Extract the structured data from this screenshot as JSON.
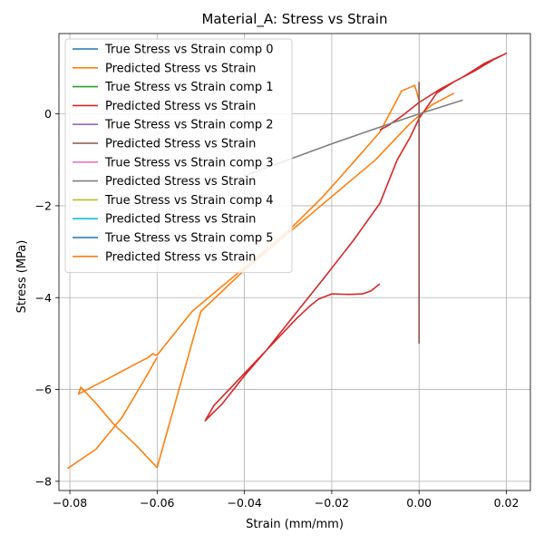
{
  "chart_data": {
    "type": "line",
    "title": "Material_A: Stress vs Strain",
    "xlabel": "Strain (mm/mm)",
    "ylabel": "Stress (MPa)",
    "xlim": [
      -0.0825,
      0.0255
    ],
    "ylim": [
      -8.2,
      1.75
    ],
    "grid": true,
    "legend_position": "top-left",
    "x_ticks": [
      -0.08,
      -0.06,
      -0.04,
      -0.02,
      0.0,
      0.02
    ],
    "x_tick_labels": [
      "−0.08",
      "−0.06",
      "−0.04",
      "−0.02",
      "0.00",
      "0.02"
    ],
    "y_ticks": [
      -8,
      -6,
      -4,
      -2,
      0
    ],
    "y_tick_labels": [
      "−8",
      "−6",
      "−4",
      "−2",
      "0"
    ],
    "series": [
      {
        "name": "True Stress vs Strain comp 0",
        "color": "#1f77b4",
        "x": [],
        "y": []
      },
      {
        "name": "Predicted Stress vs Strain",
        "color": "#ff7f0e",
        "x": [
          0.0,
          -0.001,
          -0.004,
          -0.009,
          -0.015,
          -0.022,
          -0.03,
          -0.04,
          -0.047,
          -0.052,
          -0.06,
          -0.0605,
          -0.061,
          -0.062,
          -0.066,
          -0.07,
          -0.078,
          -0.0775,
          -0.074,
          -0.07,
          -0.065,
          -0.06,
          -0.05,
          -0.04,
          -0.03,
          -0.02,
          -0.01,
          -0.002,
          0.003,
          0.008
        ],
        "y": [
          0.3,
          0.62,
          0.5,
          -0.4,
          -1.05,
          -1.8,
          -2.55,
          -3.35,
          -3.9,
          -4.3,
          -5.25,
          -5.25,
          -5.22,
          -5.3,
          -5.5,
          -5.7,
          -6.1,
          -5.95,
          -6.3,
          -6.75,
          -7.2,
          -7.7,
          -4.3,
          -3.4,
          -2.6,
          -1.8,
          -1.0,
          -0.2,
          0.2,
          0.45
        ],
        "note_closure": [
          -0.06,
          -0.0805
        ],
        "extra_x": [
          -0.06,
          -0.063,
          -0.068,
          -0.074,
          -0.0805
        ],
        "extra_y": [
          -5.3,
          -5.8,
          -6.6,
          -7.3,
          -7.72
        ]
      },
      {
        "name": "True Stress vs Strain comp 1",
        "color": "#2ca02c",
        "x": [],
        "y": []
      },
      {
        "name": "Predicted Stress vs Strain",
        "color": "#d62728",
        "x": [
          -0.009,
          -0.011,
          -0.013,
          -0.016,
          -0.02,
          -0.023,
          -0.025,
          -0.028,
          -0.032,
          -0.037,
          -0.041,
          -0.044,
          -0.047,
          -0.049,
          -0.045,
          -0.04,
          -0.035,
          -0.03,
          -0.022,
          -0.015,
          -0.009,
          -0.005,
          -0.002,
          0.0,
          0.004,
          0.008,
          0.013,
          0.017,
          0.02,
          0.015,
          0.01,
          0.005,
          0.0,
          -0.004,
          -0.007,
          -0.009
        ],
        "y": [
          -3.7,
          -3.85,
          -3.92,
          -3.93,
          -3.92,
          -4.03,
          -4.18,
          -4.45,
          -4.85,
          -5.35,
          -5.75,
          -6.05,
          -6.35,
          -6.68,
          -6.3,
          -5.7,
          -5.15,
          -4.55,
          -3.6,
          -2.75,
          -1.95,
          -1.0,
          -0.5,
          -0.1,
          0.45,
          0.7,
          0.95,
          1.18,
          1.32,
          1.1,
          0.8,
          0.55,
          0.25,
          -0.05,
          -0.25,
          -0.35
        ]
      },
      {
        "name": "True Stress vs Strain comp 2",
        "color": "#9467bd",
        "x": [],
        "y": []
      },
      {
        "name": "Predicted Stress vs Strain",
        "color": "#8c564b",
        "x": [
          0.0,
          0.0,
          0.0,
          0.0
        ],
        "y": [
          0.7,
          -2.0,
          -4.0,
          -5.0
        ]
      },
      {
        "name": "True Stress vs Strain comp 3",
        "color": "#e377c2",
        "x": [],
        "y": []
      },
      {
        "name": "Predicted Stress vs Strain",
        "color": "#7f7f7f",
        "x": [
          -0.04,
          -0.03,
          -0.02,
          -0.01,
          0.0,
          0.01
        ],
        "y": [
          -1.35,
          -1.0,
          -0.65,
          -0.32,
          0.0,
          0.3
        ]
      },
      {
        "name": "True Stress vs Strain comp 4",
        "color": "#bcbd22",
        "x": [],
        "y": []
      },
      {
        "name": "Predicted Stress vs Strain",
        "color": "#17becf",
        "x": [],
        "y": []
      },
      {
        "name": "True Stress vs Strain comp 5",
        "color": "#1f77b4",
        "x": [],
        "y": []
      },
      {
        "name": "Predicted Stress vs Strain",
        "color": "#ff7f0e",
        "x": [],
        "y": []
      }
    ]
  }
}
